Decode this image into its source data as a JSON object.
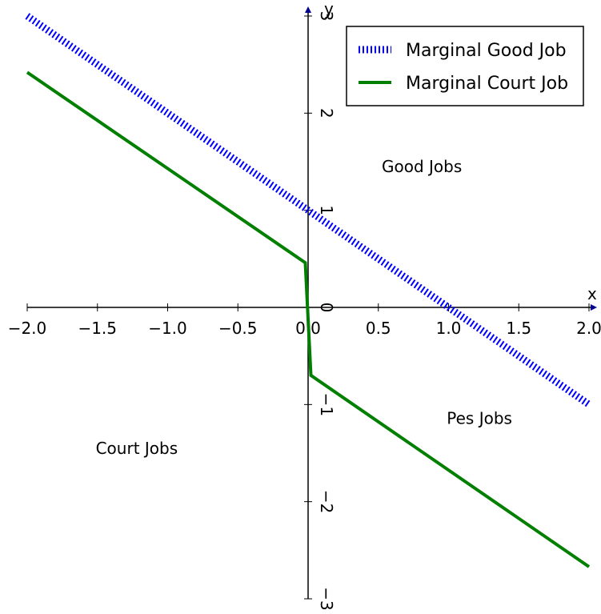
{
  "chart_data": {
    "type": "line",
    "xlabel": "x",
    "ylabel": "y",
    "xlim": [
      -2.0,
      2.0
    ],
    "ylim": [
      -3,
      3
    ],
    "x_ticks": [
      -2.0,
      -1.5,
      -1.0,
      -0.5,
      0.0,
      0.5,
      1.0,
      1.5,
      2.0
    ],
    "x_tick_labels": [
      "−2.0",
      "−1.5",
      "−1.0",
      "−0.5",
      "0.0",
      "0.5",
      "1.0",
      "1.5",
      "2.0"
    ],
    "y_ticks": [
      -3,
      -2,
      -1,
      0,
      1,
      2,
      3
    ],
    "y_tick_labels": [
      "−3",
      "−2",
      "−1",
      "0",
      "1",
      "2",
      "3"
    ],
    "grid": false,
    "spines": "centered",
    "legend": "top-right",
    "series": [
      {
        "name": "Marginal Good Job",
        "color": "#0000ff",
        "style": "dotted",
        "x": [
          -2.0,
          2.0
        ],
        "y": [
          3.0,
          -1.0
        ]
      },
      {
        "name": "Marginal Court Job",
        "color": "#007f00",
        "style": "solid",
        "x": [
          -2.0,
          -0.02,
          0.02,
          2.0
        ],
        "y": [
          2.42,
          0.46,
          -0.7,
          -2.67
        ]
      }
    ],
    "annotations": [
      {
        "text": "Good Jobs",
        "x": 0.81,
        "y": 1.45
      },
      {
        "text": "Pes Jobs",
        "x": 1.22,
        "y": -1.14
      },
      {
        "text": "Court Jobs",
        "x": -1.22,
        "y": -1.45
      }
    ]
  }
}
